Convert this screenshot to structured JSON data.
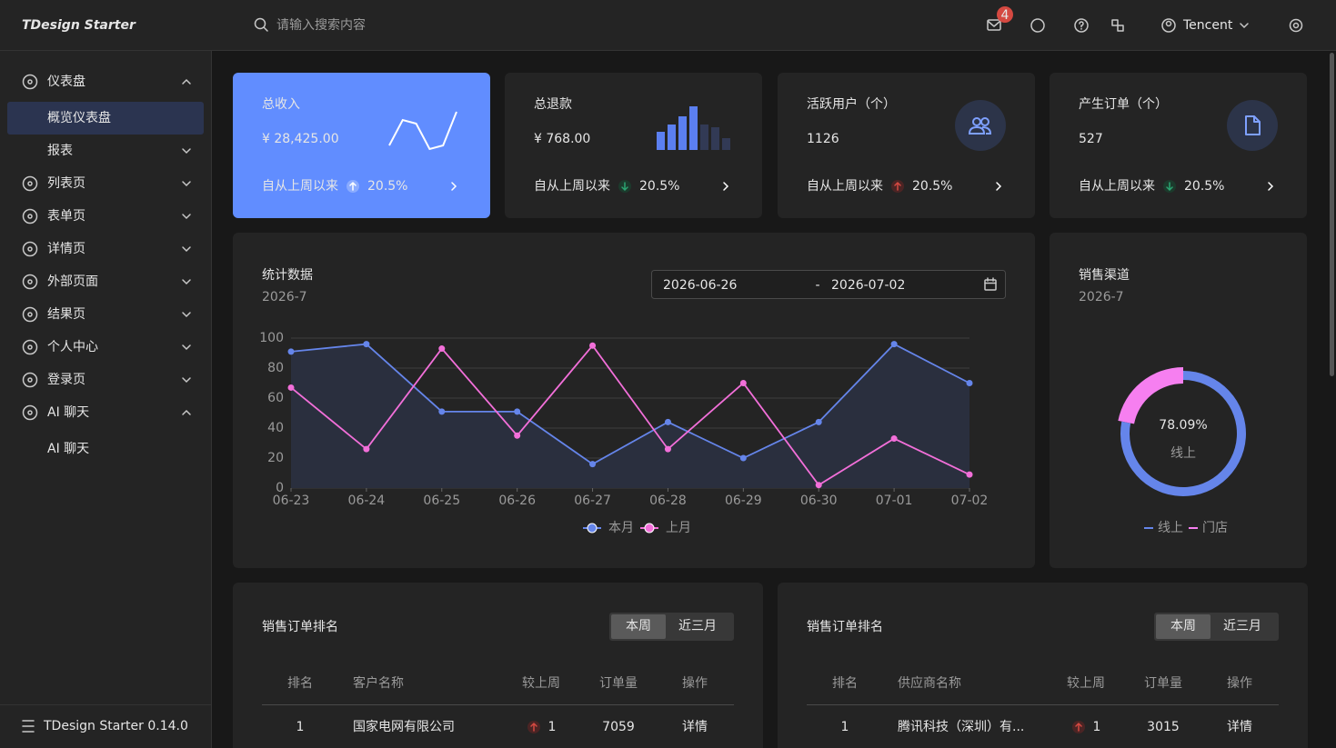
{
  "header": {
    "logo": "TDesign Starter",
    "search_placeholder": "请输入搜索内容",
    "notification_count": 4,
    "user": "Tencent"
  },
  "sidebar": {
    "menu": [
      {
        "label": "仪表盘",
        "expanded": true,
        "children": [
          {
            "label": "概览仪表盘",
            "active": true
          },
          {
            "label": "报表",
            "collapsible": true
          }
        ]
      },
      {
        "label": "列表页"
      },
      {
        "label": "表单页"
      },
      {
        "label": "详情页"
      },
      {
        "label": "外部页面"
      },
      {
        "label": "结果页"
      },
      {
        "label": "个人中心"
      },
      {
        "label": "登录页"
      },
      {
        "label": "AI 聊天",
        "expanded": true,
        "children": [
          {
            "label": "AI 聊天"
          }
        ]
      }
    ],
    "footer": "TDesign Starter 0.14.0"
  },
  "cards": [
    {
      "title": "总收入",
      "value": "¥ 28,425.00",
      "footer": "自从上周以来",
      "trend": "20.5%",
      "trend_direction": "up",
      "highlight": true,
      "sparkline": {
        "values": [
          5,
          33,
          29,
          1,
          5,
          42
        ],
        "ylim": [
          0,
          45
        ],
        "color": "#ffffff"
      }
    },
    {
      "title": "总退款",
      "value": "¥ 768.00",
      "footer": "自从上周以来",
      "trend": "20.5%",
      "trend_direction": "down",
      "bars": {
        "values": [
          20,
          28,
          37,
          48,
          28,
          25,
          13
        ],
        "ylim": [
          0,
          50
        ],
        "colors": [
          "#5b7ff0",
          "#5b7ff0",
          "#5b7ff0",
          "#5b7ff0",
          "#323a55",
          "#323a55",
          "#323a55"
        ]
      }
    },
    {
      "title": "活跃用户（个）",
      "value": "1126",
      "footer": "自从上周以来",
      "trend": "20.5%",
      "trend_direction": "up",
      "icon": "users"
    },
    {
      "title": "产生订单（个）",
      "value": "527",
      "footer": "自从上周以来",
      "trend": "20.5%",
      "trend_direction": "down",
      "icon": "file"
    }
  ],
  "date_range": {
    "start": "2026-06-26",
    "separator": "-",
    "end": "2026-07-02"
  },
  "chart_data": [
    {
      "type": "line",
      "title": "统计数据",
      "subtitle": "2026-7",
      "categories": [
        "06-23",
        "06-24",
        "06-25",
        "06-26",
        "06-27",
        "06-28",
        "06-29",
        "06-30",
        "07-01",
        "07-02"
      ],
      "series": [
        {
          "name": "本月",
          "color": "#6585ea",
          "area": true,
          "values": [
            91,
            96,
            51,
            51,
            16,
            44,
            20,
            44,
            96,
            70
          ]
        },
        {
          "name": "上月",
          "color": "#f26fd9",
          "values": [
            67,
            26,
            93,
            35,
            95,
            26,
            70,
            2,
            33,
            9
          ]
        }
      ],
      "ylim": [
        0,
        100
      ],
      "yticks": [
        0,
        20,
        40,
        60,
        80,
        100
      ],
      "grid": true,
      "legend": "bottom"
    },
    {
      "type": "pie",
      "donut": true,
      "title": "销售渠道",
      "subtitle": "2026-7",
      "categories": [
        "线上",
        "门店"
      ],
      "values": [
        78.09,
        21.91
      ],
      "value_labels": [
        "78.09%",
        null
      ],
      "colors": [
        "#6585ea",
        "#f67ff0"
      ],
      "highlight_index": 1,
      "legend": "bottom"
    }
  ],
  "rankings": [
    {
      "title": "销售订单排名",
      "tabs": [
        "本周",
        "近三月"
      ],
      "active_tab": 0,
      "columns": [
        "排名",
        "客户名称",
        "较上周",
        "订单量",
        "操作"
      ],
      "rows": [
        [
          1,
          "国家电网有限公司",
          {
            "value": 1,
            "direction": "up"
          },
          7059,
          "详情"
        ]
      ]
    },
    {
      "title": "销售订单排名",
      "tabs": [
        "本周",
        "近三月"
      ],
      "active_tab": 0,
      "columns": [
        "排名",
        "供应商名称",
        "较上周",
        "订单量",
        "操作"
      ],
      "rows": [
        [
          1,
          "腾讯科技（深圳）有...",
          {
            "value": 1,
            "direction": "up"
          },
          3015,
          "详情"
        ]
      ]
    }
  ]
}
